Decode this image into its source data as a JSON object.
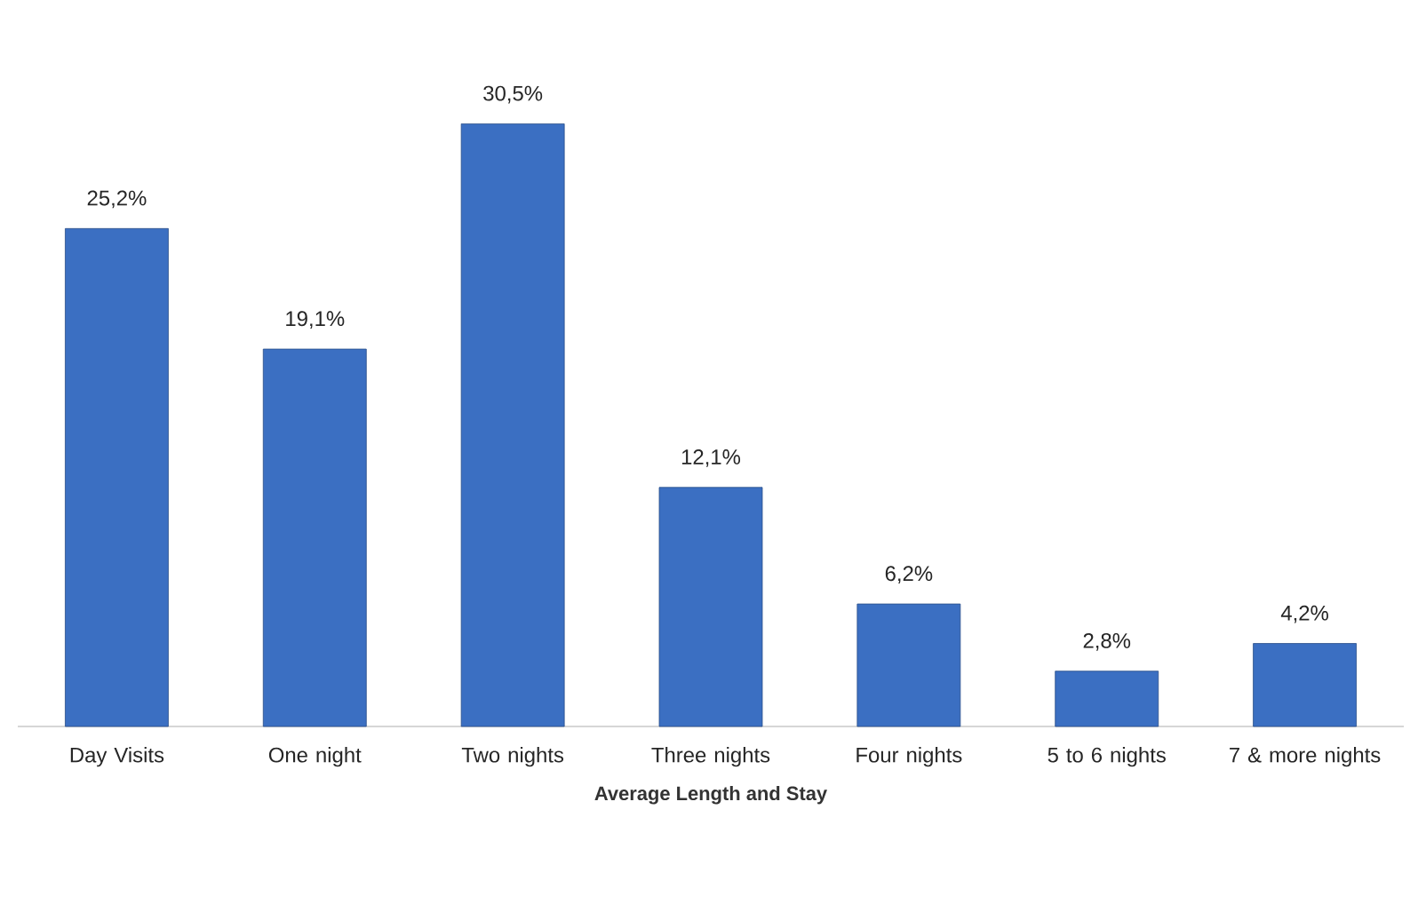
{
  "chart_data": {
    "type": "bar",
    "xlabel": "Average Length and Stay",
    "categories": [
      "Day Visits",
      "One night",
      "Two nights",
      "Three nights",
      "Four nights",
      "5 to 6 nights",
      "7 & more nights"
    ],
    "values": [
      25.2,
      19.1,
      30.5,
      12.1,
      6.2,
      2.8,
      4.2
    ],
    "value_labels": [
      "25,2%",
      "19,1%",
      "30,5%",
      "12,1%",
      "6,2%",
      "2,8%",
      "4,2%"
    ],
    "color": "#3b6fc2"
  }
}
